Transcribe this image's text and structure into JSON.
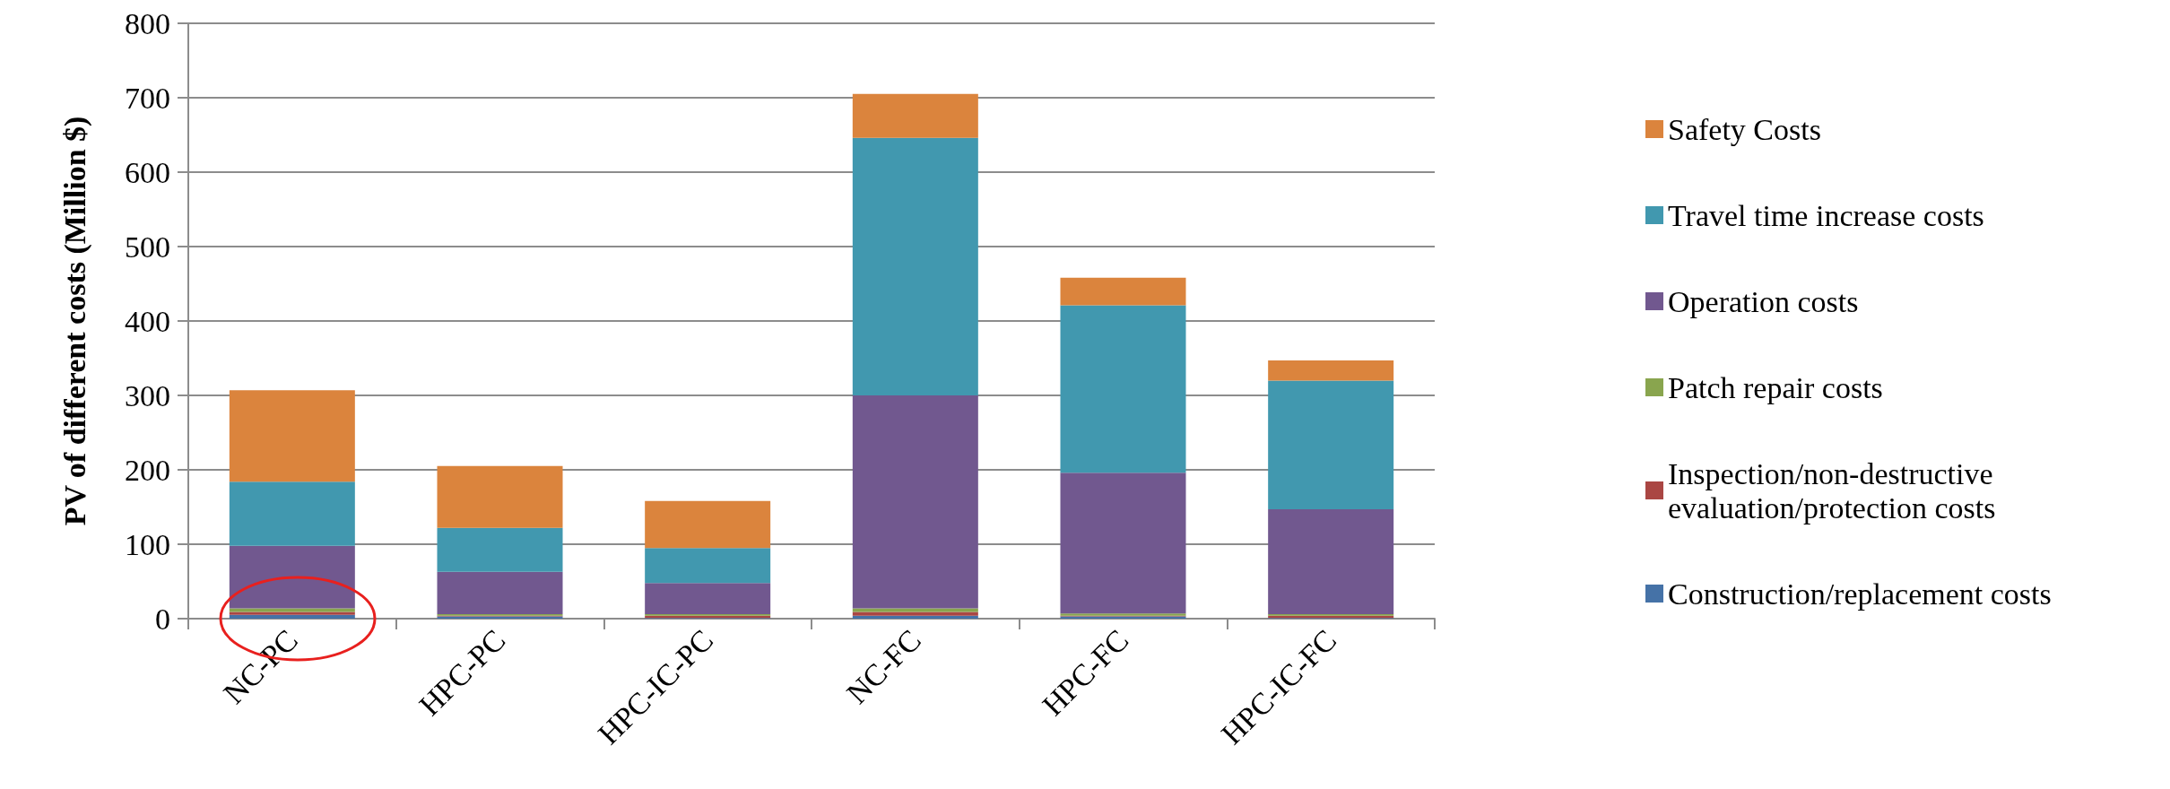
{
  "chart_data": {
    "type": "bar",
    "ylabel": "PV of different costs (Million $)",
    "categories": [
      "NC-PC",
      "HPC-PC",
      "HPC-IC-PC",
      "NC-FC",
      "HPC-FC",
      "HPC-IC-FC"
    ],
    "stacked": true,
    "ylim": [
      0,
      800
    ],
    "yticks": [
      0,
      100,
      200,
      300,
      400,
      500,
      600,
      700,
      800
    ],
    "grid": "y",
    "legend": "right",
    "series": [
      {
        "name": "Construction/replacement costs",
        "color": "#4572a7",
        "values": [
          5,
          3,
          1,
          4,
          3,
          1
        ]
      },
      {
        "name": "Inspection/non-destructive evaluation/protection costs",
        "color": "#aa4643",
        "values": [
          4,
          1,
          3,
          5,
          1,
          3
        ]
      },
      {
        "name": "Patch repair costs",
        "color": "#89a54e",
        "values": [
          5,
          2,
          2,
          5,
          3,
          2
        ]
      },
      {
        "name": "Operation costs",
        "color": "#71588f",
        "values": [
          84,
          57,
          42,
          286,
          189,
          141
        ]
      },
      {
        "name": "Travel time increase costs",
        "color": "#4198af",
        "values": [
          86,
          59,
          47,
          346,
          225,
          173
        ]
      },
      {
        "name": "Safety Costs",
        "color": "#db843d",
        "values": [
          123,
          83,
          63,
          59,
          37,
          27
        ]
      }
    ]
  }
}
